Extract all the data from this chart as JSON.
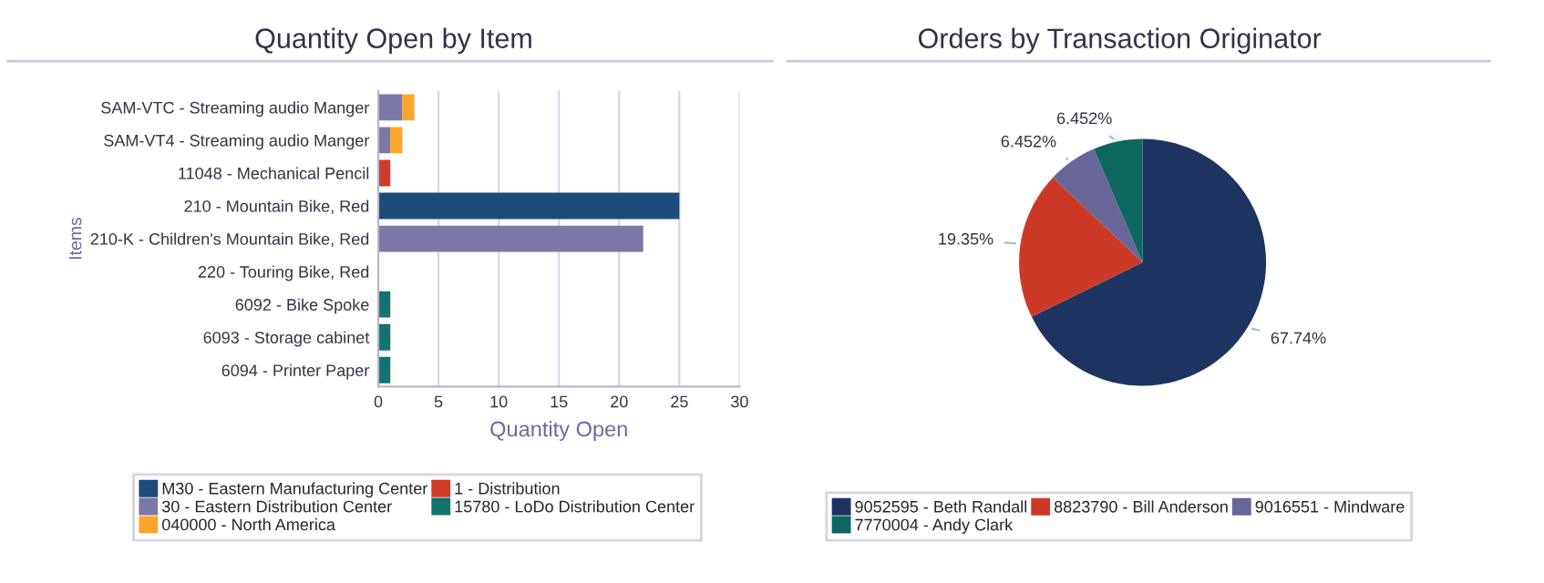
{
  "chart_data": [
    {
      "type": "bar",
      "title": "Quantity Open by Item",
      "xlabel": "Quantity Open",
      "ylabel": "Items",
      "orientation": "horizontal",
      "stacked": true,
      "categories": [
        "SAM-VTC - Streaming audio Manger",
        "SAM-VT4 - Streaming audio Manger",
        "11048 - Mechanical Pencil",
        "210 - Mountain Bike, Red",
        "210-K - Children's Mountain Bike, Red",
        "220 - Touring Bike, Red",
        "6092 - Bike Spoke",
        "6093 - Storage cabinet",
        "6094 - Printer Paper"
      ],
      "series": [
        {
          "name": "M30 - Eastern Manufacturing Center",
          "color": "#1d4b7a",
          "values": [
            0,
            0,
            0,
            25,
            0,
            0,
            0,
            0,
            0
          ]
        },
        {
          "name": "1 - Distribution",
          "color": "#d03c26",
          "values": [
            0,
            0,
            1,
            0,
            0,
            0,
            0,
            0,
            0
          ]
        },
        {
          "name": "30 - Eastern Distribution Center",
          "color": "#7b78a8",
          "values": [
            2,
            1,
            0,
            0,
            22,
            0,
            0,
            0,
            0
          ]
        },
        {
          "name": "15780 - LoDo Distribution Center",
          "color": "#137370",
          "values": [
            0,
            0,
            0,
            0,
            0,
            0,
            1,
            1,
            1
          ]
        },
        {
          "name": "040000 - North America",
          "color": "#fba62a",
          "values": [
            1,
            1,
            0,
            0,
            0,
            0,
            0,
            0,
            0
          ]
        }
      ],
      "xlim": [
        0,
        30
      ],
      "xticks": [
        0,
        5,
        10,
        15,
        20,
        25,
        30
      ],
      "grid": "x",
      "legend": "bottom"
    },
    {
      "type": "pie",
      "title": "Orders by Transaction Originator",
      "categories": [
        "9052595 - Beth Randall",
        "8823790 - Bill Anderson",
        "9016551 - Mindware",
        "7770004 - Andy Clark"
      ],
      "values": [
        67.74,
        19.35,
        6.452,
        6.452
      ],
      "value_labels": [
        "67.74%",
        "19.35%",
        "6.452%",
        "6.452%"
      ],
      "colors": [
        "#1d3461",
        "#cc3a27",
        "#686699",
        "#0e6761"
      ],
      "legend": "bottom"
    }
  ]
}
